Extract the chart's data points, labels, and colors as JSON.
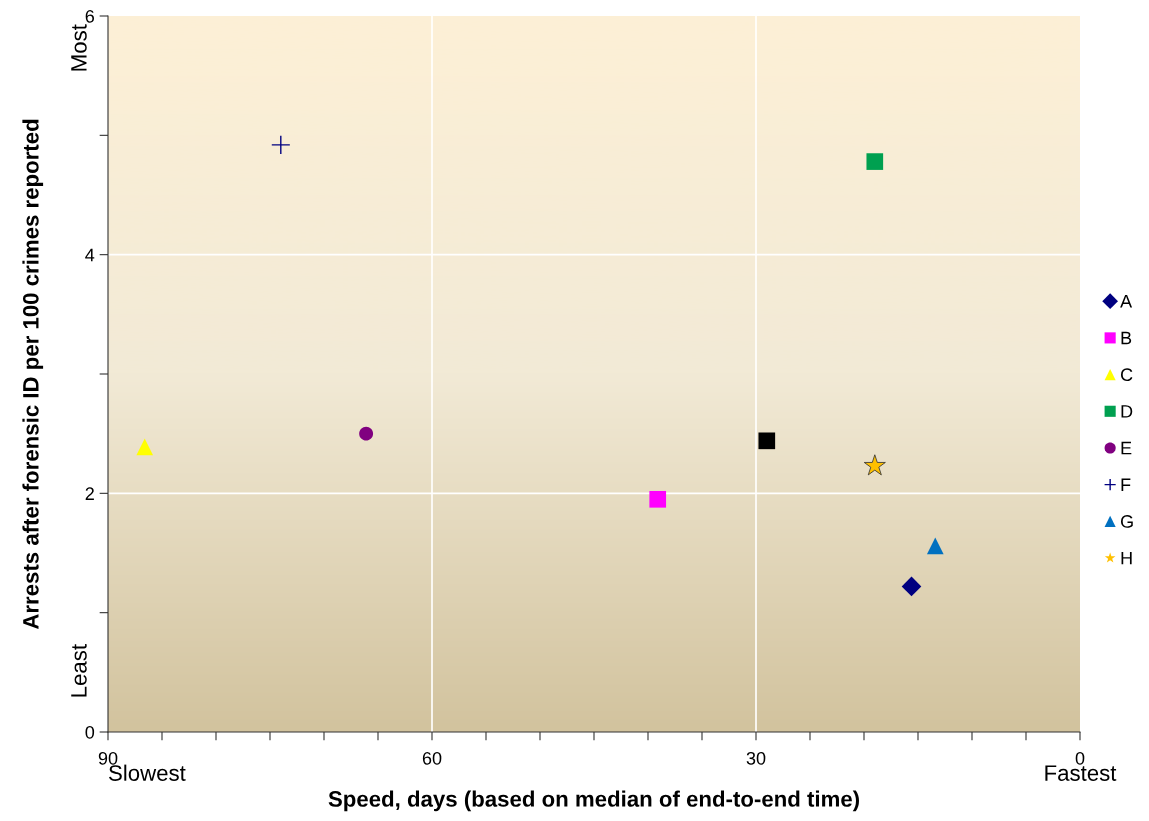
{
  "chart_data": {
    "type": "scatter",
    "xlabel": "Speed, days (based on median of end-to-end time)",
    "ylabel": "Arrests after forensic ID per 100 crimes reported",
    "xlim": [
      90,
      0
    ],
    "ylim": [
      0,
      6
    ],
    "xticks": [
      90,
      {
        "value": 85,
        "label": null
      },
      {
        "value": 80,
        "label": null
      },
      {
        "value": 75,
        "label": null
      },
      {
        "value": 70,
        "label": null
      },
      {
        "value": 65,
        "label": null
      },
      60,
      {
        "value": 55,
        "label": null
      },
      {
        "value": 50,
        "label": null
      },
      {
        "value": 45,
        "label": null
      },
      {
        "value": 40,
        "label": null
      },
      {
        "value": 35,
        "label": null
      },
      30,
      {
        "value": 25,
        "label": null
      },
      {
        "value": 20,
        "label": null
      },
      {
        "value": 15,
        "label": null
      },
      {
        "value": 10,
        "label": null
      },
      {
        "value": 5,
        "label": null
      },
      0
    ],
    "yticks": [
      0,
      {
        "value": 1,
        "label": null
      },
      2,
      {
        "value": 3,
        "label": null
      },
      4,
      {
        "value": 5,
        "label": null
      },
      6
    ],
    "grid": true,
    "legend": "right",
    "annotations": [
      "Most",
      "Least",
      "Slowest",
      "Fastest"
    ],
    "series": [
      {
        "name": "A",
        "color": "#000080",
        "marker": "diamond",
        "x": [
          15.6
        ],
        "values": [
          1.22
        ]
      },
      {
        "name": "B",
        "color": "#ff00ff",
        "marker": "square",
        "x": [
          39.1
        ],
        "values": [
          1.95
        ]
      },
      {
        "name": "C",
        "color": "#ffff00",
        "marker": "triangle",
        "x": [
          86.6
        ],
        "values": [
          2.39
        ]
      },
      {
        "name": "D",
        "color": "#00a050",
        "marker": "square",
        "x": [
          19.0
        ],
        "values": [
          4.78
        ]
      },
      {
        "name": "E",
        "color": "#800080",
        "marker": "circle",
        "x": [
          66.1
        ],
        "values": [
          2.5
        ]
      },
      {
        "name": "F",
        "color": "#000080",
        "marker": "cross",
        "x": [
          74.0
        ],
        "values": [
          4.92
        ]
      },
      {
        "name": "G",
        "color": "#0070c0",
        "marker": "triangle",
        "x": [
          13.4
        ],
        "values": [
          1.56
        ]
      },
      {
        "name": "H",
        "color": "#ffc000",
        "marker": "star",
        "x": [
          19.0
        ],
        "values": [
          2.23
        ]
      },
      {
        "color": "#000000",
        "marker": "square",
        "x": [
          29.0
        ],
        "values": [
          2.44
        ]
      }
    ]
  }
}
